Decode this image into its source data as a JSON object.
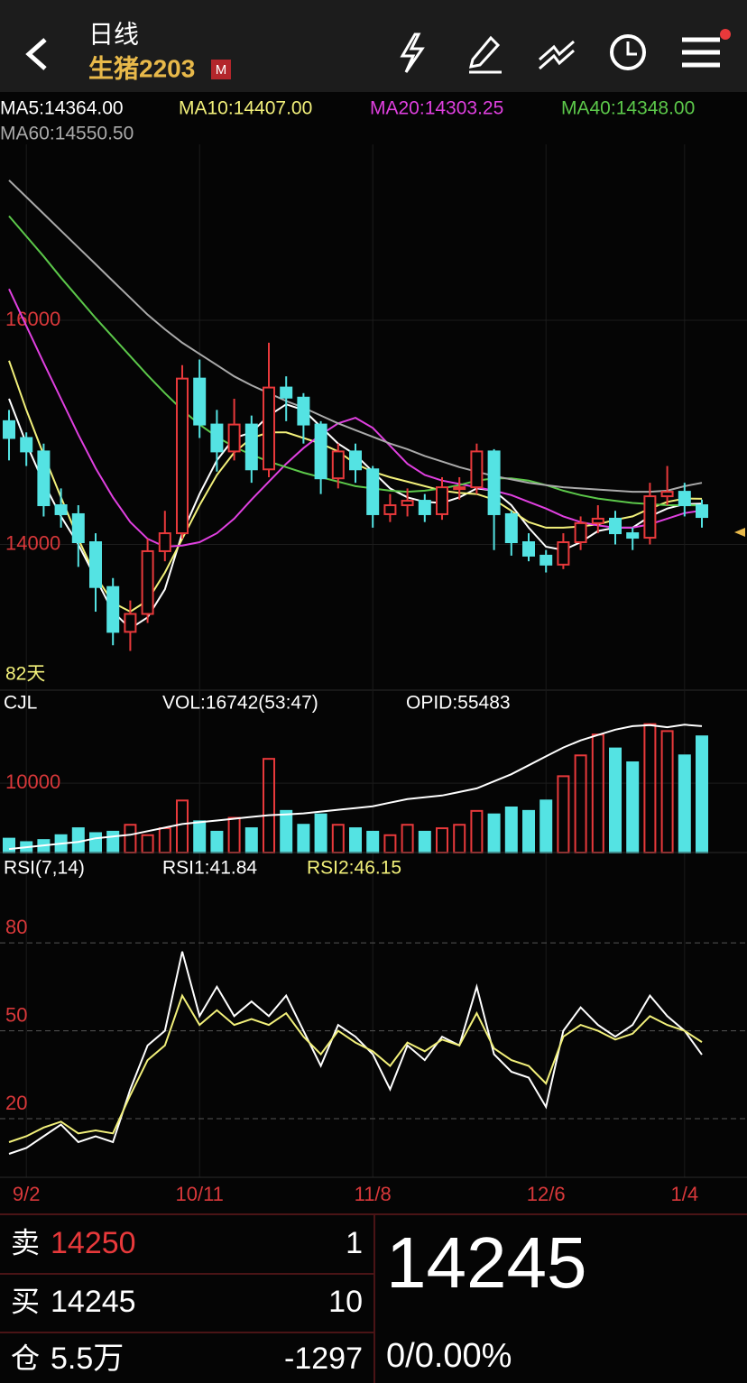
{
  "header": {
    "title": "日线",
    "symbol": "生猪2203",
    "badge": "M"
  },
  "chart_data": [
    {
      "type": "candlestick",
      "days_label": "82天",
      "up_color": "#e8393b",
      "down_color": "#54e3e3",
      "categories": [
        null,
        "9/2",
        null,
        null,
        null,
        null,
        null,
        null,
        null,
        null,
        null,
        "10/11",
        null,
        null,
        null,
        null,
        null,
        null,
        null,
        null,
        null,
        "11/8",
        null,
        null,
        null,
        null,
        null,
        null,
        null,
        null,
        null,
        "12/6",
        null,
        null,
        null,
        null,
        null,
        null,
        null,
        "1/4",
        null
      ],
      "open": [
        15100,
        14950,
        14830,
        14350,
        14270,
        14020,
        13620,
        13220,
        13380,
        13940,
        14100,
        15480,
        15070,
        14830,
        15070,
        14670,
        15400,
        15310,
        15070,
        14590,
        14830,
        14670,
        14270,
        14350,
        14390,
        14270,
        14510,
        14510,
        14830,
        14270,
        14020,
        13900,
        13820,
        14020,
        14190,
        14230,
        14100,
        14060,
        14430,
        14470,
        14350
      ],
      "high": [
        15200,
        15000,
        14900,
        14500,
        14350,
        14100,
        13700,
        13500,
        14050,
        14300,
        15600,
        15650,
        15200,
        15300,
        15150,
        15800,
        15500,
        15350,
        15100,
        14900,
        14900,
        14700,
        14450,
        14500,
        14450,
        14600,
        14600,
        14900,
        14850,
        14300,
        14100,
        13950,
        14100,
        14250,
        14350,
        14300,
        14150,
        14550,
        14700,
        14550,
        14400
      ],
      "low": [
        14750,
        14700,
        14250,
        14150,
        13800,
        13400,
        13100,
        13050,
        13300,
        13850,
        14050,
        14950,
        14650,
        14750,
        14550,
        14600,
        15100,
        14900,
        14450,
        14500,
        14550,
        14150,
        14200,
        14250,
        14200,
        14220,
        14400,
        14450,
        13950,
        13900,
        13850,
        13750,
        13780,
        13950,
        14100,
        14000,
        13950,
        14000,
        14350,
        14250,
        14150
      ],
      "close": [
        14950,
        14830,
        14350,
        14270,
        14020,
        13620,
        13220,
        13380,
        13940,
        14100,
        15480,
        15070,
        14830,
        15070,
        14670,
        15400,
        15310,
        15070,
        14590,
        14830,
        14670,
        14270,
        14350,
        14390,
        14270,
        14510,
        14510,
        14830,
        14270,
        14020,
        13900,
        13820,
        14020,
        14190,
        14230,
        14100,
        14060,
        14430,
        14470,
        14350,
        14245
      ],
      "ylim": [
        12700,
        17570
      ],
      "yticks": [
        14000,
        16000
      ],
      "series": [
        {
          "name": "MA5:14364.00",
          "color": "#ffffff",
          "values": [
            15300,
            14900,
            14550,
            14250,
            14000,
            13700,
            13400,
            13250,
            13350,
            13600,
            14100,
            14450,
            14750,
            14950,
            15000,
            15150,
            15250,
            15200,
            15050,
            14900,
            14800,
            14650,
            14500,
            14420,
            14380,
            14370,
            14420,
            14500,
            14480,
            14350,
            14150,
            13980,
            13950,
            14020,
            14120,
            14150,
            14150,
            14250,
            14320,
            14360,
            14364
          ]
        },
        {
          "name": "MA10:14407.00",
          "color": "#f2f07a",
          "values": [
            15640,
            15200,
            14800,
            14420,
            14050,
            13720,
            13480,
            13400,
            13500,
            13750,
            14050,
            14350,
            14620,
            14820,
            14950,
            15000,
            15000,
            14950,
            14900,
            14830,
            14720,
            14650,
            14600,
            14560,
            14520,
            14480,
            14460,
            14450,
            14400,
            14300,
            14200,
            14150,
            14150,
            14160,
            14180,
            14220,
            14250,
            14320,
            14380,
            14410,
            14407
          ]
        },
        {
          "name": "MA20:14303.25",
          "color": "#e040e0",
          "values": [
            16280,
            15950,
            15620,
            15300,
            14980,
            14680,
            14420,
            14200,
            14050,
            13980,
            13990,
            14020,
            14100,
            14230,
            14400,
            14560,
            14720,
            14860,
            14980,
            15080,
            15130,
            15040,
            14880,
            14720,
            14620,
            14570,
            14540,
            14510,
            14480,
            14440,
            14380,
            14320,
            14250,
            14200,
            14170,
            14150,
            14150,
            14180,
            14230,
            14280,
            14303
          ]
        },
        {
          "name": "MA40:14348.00",
          "color": "#5cc84a",
          "values": [
            16930,
            16750,
            16570,
            16380,
            16200,
            16020,
            15850,
            15680,
            15510,
            15350,
            15200,
            15070,
            14960,
            14870,
            14800,
            14740,
            14690,
            14640,
            14600,
            14560,
            14520,
            14500,
            14480,
            14470,
            14480,
            14500,
            14530,
            14570,
            14590,
            14590,
            14570,
            14530,
            14480,
            14440,
            14410,
            14390,
            14370,
            14360,
            14350,
            14350,
            14348
          ]
        },
        {
          "name": "MA60:14550.50",
          "color": "#aaaaaa",
          "values": [
            17250,
            17100,
            16950,
            16800,
            16650,
            16500,
            16350,
            16200,
            16050,
            15920,
            15800,
            15700,
            15600,
            15500,
            15420,
            15350,
            15280,
            15220,
            15150,
            15080,
            15020,
            14960,
            14900,
            14850,
            14790,
            14740,
            14690,
            14650,
            14610,
            14580,
            14550,
            14530,
            14510,
            14500,
            14490,
            14480,
            14470,
            14470,
            14480,
            14520,
            14550
          ]
        }
      ]
    },
    {
      "type": "volume",
      "title": "CJL",
      "name": "VOL:16742(53:47)",
      "ylim": [
        0,
        19500
      ],
      "yticks": [
        10000
      ],
      "values": [
        2000,
        1500,
        1800,
        2500,
        3500,
        2800,
        3000,
        4000,
        2500,
        3500,
        7500,
        4500,
        3000,
        5000,
        3500,
        13500,
        6000,
        4000,
        5500,
        4000,
        3500,
        3000,
        2500,
        4000,
        3000,
        3500,
        4000,
        6000,
        5500,
        6500,
        6000,
        7500,
        11000,
        14000,
        17000,
        15000,
        13000,
        18500,
        17500,
        14000,
        16742
      ],
      "line": {
        "name": "OPID:55483",
        "color": "#ffffff",
        "ylim": [
          20000,
          58000
        ],
        "values": [
          21000,
          21500,
          22000,
          22500,
          23000,
          24000,
          24500,
          25000,
          26000,
          27000,
          28000,
          28500,
          29000,
          29500,
          30000,
          30500,
          30700,
          31000,
          31500,
          32000,
          32500,
          33000,
          34000,
          35000,
          35500,
          36000,
          37000,
          38000,
          40000,
          42000,
          44500,
          47000,
          49500,
          51500,
          53000,
          54500,
          55500,
          55800,
          55200,
          55900,
          55483
        ]
      }
    },
    {
      "type": "line",
      "title": "RSI(7,14)",
      "ylim": [
        0,
        98.5
      ],
      "yticks": [
        20,
        50,
        80
      ],
      "series": [
        {
          "name": "RSI1:41.84",
          "color": "#ffffff",
          "values": [
            8,
            10,
            14,
            18,
            12,
            14,
            12,
            30,
            45,
            50,
            77,
            55,
            65,
            55,
            60,
            55,
            62,
            50,
            38,
            52,
            48,
            42,
            30,
            45,
            40,
            48,
            45,
            65,
            42,
            36,
            34,
            24,
            50,
            58,
            52,
            48,
            52,
            62,
            55,
            50,
            41.84
          ]
        },
        {
          "name": "RSI2:46.15",
          "color": "#f2f07a",
          "values": [
            12,
            14,
            17,
            19,
            15,
            16,
            15,
            28,
            40,
            45,
            62,
            52,
            57,
            52,
            54,
            52,
            56,
            48,
            42,
            50,
            46,
            43,
            38,
            46,
            43,
            47,
            45,
            56,
            44,
            40,
            38,
            32,
            48,
            52,
            50,
            47,
            49,
            55,
            52,
            50,
            46.15
          ]
        }
      ]
    }
  ],
  "quote": {
    "sell": {
      "label": "卖",
      "price": 14250,
      "qty": 1
    },
    "buy": {
      "label": "买",
      "price": 14245,
      "qty": 10
    },
    "oi": {
      "label": "仓",
      "amount": "5.5万",
      "change": -1297
    },
    "last": 14245,
    "change": "0/0.00%"
  }
}
